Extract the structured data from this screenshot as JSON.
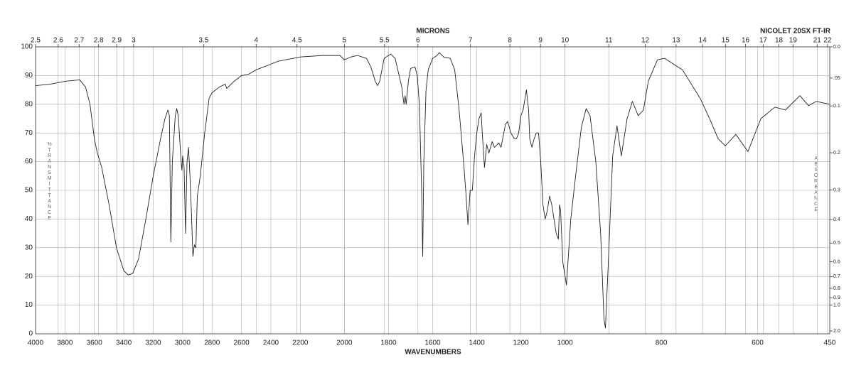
{
  "chart_data": {
    "type": "line",
    "title": "NICOLET 20SX FT-IR",
    "xlabel": "WAVENUMBERS",
    "ylabel": "%TRANSMITTANCE",
    "color": "#222222",
    "grid": true,
    "xlim": [
      4000,
      450
    ],
    "x_breaks": [
      2200,
      1000
    ],
    "xticks": [
      4000,
      3800,
      3600,
      3400,
      3200,
      3000,
      2800,
      2600,
      2400,
      2200,
      2000,
      1800,
      1600,
      1400,
      1200,
      1000,
      800,
      600,
      450
    ],
    "ylim": [
      0,
      100
    ],
    "yticks": [
      0,
      10,
      20,
      30,
      40,
      50,
      60,
      70,
      80,
      90,
      100
    ],
    "top_axis": {
      "label": "MICRONS",
      "ticks": [
        2.5,
        2.6,
        2.7,
        2.8,
        2.9,
        3,
        3.5,
        4,
        4.5,
        5,
        5.5,
        6,
        7,
        8,
        9,
        10,
        11,
        12,
        13,
        14,
        15,
        16,
        17,
        18,
        19,
        21,
        22
      ]
    },
    "y2_axis": {
      "label": "ABSORBANCE",
      "ticks": [
        {
          "value": 0,
          "label": "0.0"
        },
        {
          "value": 0.05,
          "label": ".05"
        },
        0.1,
        0.2,
        0.3,
        0.4,
        0.5,
        0.6,
        0.7,
        0.8,
        0.9,
        {
          "value": 1,
          "label": "1.0"
        },
        {
          "value": 2,
          "label": "2.0"
        }
      ]
    },
    "x": [
      4000,
      3900,
      3800,
      3700,
      3660,
      3630,
      3600,
      3580,
      3550,
      3500,
      3450,
      3400,
      3370,
      3340,
      3300,
      3250,
      3200,
      3150,
      3120,
      3100,
      3090,
      3080,
      3070,
      3050,
      3040,
      3030,
      3010,
      3005,
      3000,
      2990,
      2980,
      2970,
      2960,
      2950,
      2940,
      2930,
      2920,
      2910,
      2900,
      2880,
      2850,
      2820,
      2800,
      2750,
      2710,
      2700,
      2650,
      2600,
      2550,
      2500,
      2400,
      2350,
      2300,
      2200,
      2100,
      2020,
      2000,
      1970,
      1940,
      1900,
      1880,
      1860,
      1850,
      1840,
      1820,
      1790,
      1770,
      1740,
      1730,
      1725,
      1720,
      1710,
      1700,
      1680,
      1670,
      1660,
      1650,
      1645,
      1640,
      1630,
      1620,
      1600,
      1580,
      1570,
      1550,
      1520,
      1500,
      1480,
      1460,
      1450,
      1440,
      1430,
      1420,
      1410,
      1400,
      1390,
      1380,
      1375,
      1365,
      1355,
      1345,
      1330,
      1320,
      1300,
      1290,
      1270,
      1260,
      1245,
      1230,
      1220,
      1210,
      1200,
      1190,
      1175,
      1165,
      1160,
      1150,
      1140,
      1130,
      1120,
      1110,
      1100,
      1090,
      1080,
      1070,
      1060,
      1050,
      1040,
      1030,
      1025,
      1020,
      1010,
      997,
      988,
      978,
      966,
      956,
      948,
      936,
      926,
      919,
      916,
      910,
      901,
      892,
      883,
      871,
      860,
      848,
      837,
      827,
      808,
      793,
      756,
      719,
      697,
      682,
      667,
      645,
      620,
      593,
      564,
      542,
      512,
      494,
      478,
      450
    ],
    "values": [
      86.5,
      87,
      88,
      88.5,
      86,
      80,
      68,
      63,
      58,
      45,
      30,
      22,
      20.5,
      21,
      26,
      40,
      55,
      68,
      75,
      78,
      76,
      32,
      60,
      76,
      78.5,
      76,
      60,
      57,
      62,
      58,
      35,
      60,
      65,
      55,
      42,
      27,
      31,
      30,
      48,
      55,
      70,
      82,
      84,
      86,
      87,
      85.5,
      88,
      90,
      90.5,
      92,
      94,
      95,
      95.5,
      96.5,
      97,
      97,
      95.5,
      96.5,
      97,
      96,
      93,
      88,
      86.5,
      88,
      96,
      97.5,
      96,
      86,
      80,
      83,
      80,
      88,
      92.5,
      93,
      90,
      80,
      50,
      27,
      60,
      85,
      92,
      96,
      97,
      98,
      96.5,
      96,
      92,
      78,
      60,
      50,
      38,
      50,
      50,
      62,
      70,
      75,
      77,
      70,
      58,
      66,
      63,
      67,
      65,
      66.5,
      65,
      73,
      74,
      70,
      68,
      68,
      70,
      76,
      78,
      85,
      78,
      68,
      65,
      68,
      70,
      70,
      60,
      45,
      40,
      43,
      48,
      45,
      40,
      35,
      33,
      45,
      43,
      25,
      17,
      40,
      55,
      72,
      78.5,
      76,
      60,
      35,
      5,
      2,
      25,
      62,
      72.5,
      62,
      75,
      81,
      76,
      78,
      88,
      95.5,
      96,
      92,
      82,
      74,
      68,
      65.5,
      69.5,
      63.5,
      75,
      79,
      78,
      83,
      79.5,
      81,
      80
    ]
  }
}
